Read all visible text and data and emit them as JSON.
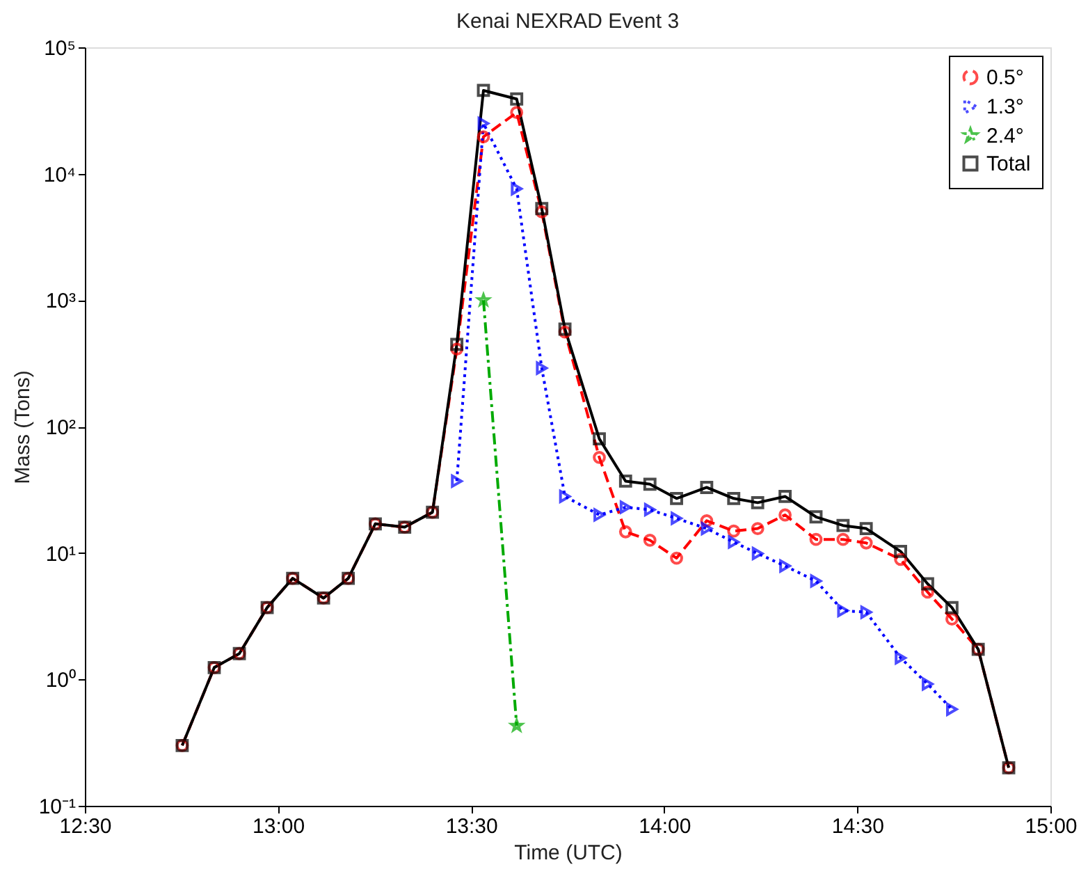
{
  "chart_data": {
    "type": "line",
    "title": "Kenai NEXRAD Event 3",
    "xlabel": "Time (UTC)",
    "ylabel": "Mass (Tons)",
    "x": [
      12.752,
      12.835,
      12.9,
      12.972,
      13.038,
      13.118,
      13.182,
      13.252,
      13.328,
      13.4,
      13.463,
      13.532,
      13.618,
      13.683,
      13.743,
      13.832,
      13.9,
      13.963,
      14.032,
      14.11,
      14.18,
      14.242,
      14.313,
      14.393,
      14.463,
      14.523,
      14.612,
      14.682,
      14.745,
      14.813,
      14.892
    ],
    "series": [
      {
        "name": "0.5°",
        "color": "#ff0000",
        "marker": "circle",
        "line_style": "dashed",
        "values": [
          0.3,
          1.24,
          1.6,
          3.7,
          6.3,
          4.4,
          6.3,
          17,
          16,
          21,
          410,
          19600,
          30500,
          5000,
          560,
          57,
          14.7,
          12.6,
          9.1,
          18,
          14.9,
          15.6,
          20,
          12.8,
          12.8,
          12,
          8.9,
          4.9,
          3,
          1.73,
          0.2
        ]
      },
      {
        "name": "1.3°",
        "color": "#0000ff",
        "marker": "triangle",
        "line_style": "dotted",
        "values": [
          null,
          null,
          null,
          null,
          null,
          null,
          null,
          null,
          null,
          null,
          37,
          25000,
          7600,
          290,
          28,
          20,
          23,
          22,
          18.8,
          15.6,
          12.2,
          9.9,
          7.9,
          6,
          3.5,
          3.4,
          1.48,
          0.92,
          0.58,
          null,
          null
        ]
      },
      {
        "name": "2.4°",
        "color": "#00aa00",
        "marker": "star",
        "line_style": "dashdot",
        "values": [
          null,
          null,
          null,
          null,
          null,
          null,
          null,
          null,
          null,
          null,
          null,
          1000,
          0.43,
          null,
          null,
          null,
          null,
          null,
          null,
          null,
          null,
          null,
          null,
          null,
          null,
          null,
          null,
          null,
          null,
          null,
          null
        ]
      },
      {
        "name": "Total",
        "color": "#000000",
        "marker": "square",
        "line_style": "solid",
        "values": [
          0.3,
          1.24,
          1.6,
          3.7,
          6.3,
          4.4,
          6.3,
          17,
          16,
          21,
          447,
          45600,
          39000,
          5300,
          590,
          80,
          37,
          35,
          27,
          33,
          27,
          25,
          28,
          19.3,
          16.5,
          15.6,
          10.3,
          5.7,
          3.7,
          1.73,
          0.2
        ]
      }
    ],
    "log": true,
    "grid": false,
    "legend": "top right",
    "xlim": [
      12.5,
      15
    ],
    "xticks": [
      {
        "value": 12.5,
        "label": "12:30"
      },
      {
        "value": 13,
        "label": "13:00"
      },
      {
        "value": 13.5,
        "label": "13:30"
      },
      {
        "value": 14,
        "label": "14:00"
      },
      {
        "value": 14.5,
        "label": "14:30"
      },
      {
        "value": 15,
        "label": "15:00"
      }
    ],
    "ylim": [
      0.1,
      100000
    ],
    "yticks": [
      {
        "value": 0.1,
        "label": "10⁻¹"
      },
      {
        "value": 1,
        "label": "10⁰"
      },
      {
        "value": 10,
        "label": "10¹"
      },
      {
        "value": 100,
        "label": "10²"
      },
      {
        "value": 1000,
        "label": "10³"
      },
      {
        "value": 10000,
        "label": "10⁴"
      },
      {
        "value": 100000,
        "label": "10⁵"
      }
    ]
  }
}
